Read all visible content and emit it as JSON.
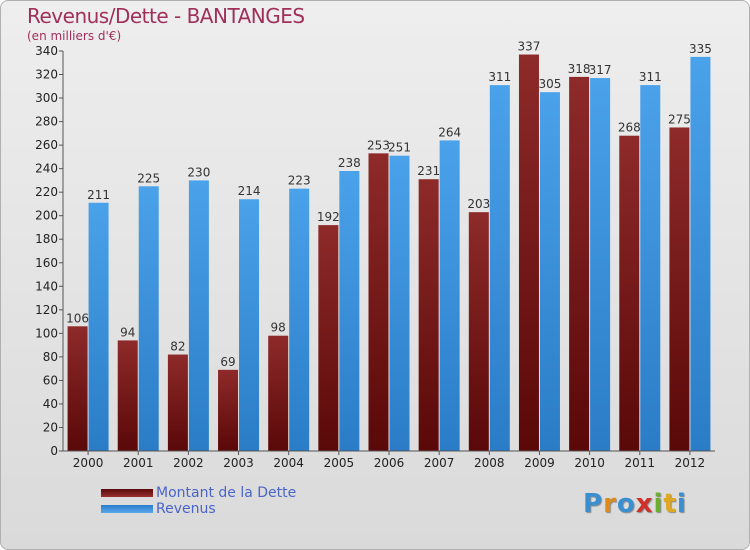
{
  "chart_data": {
    "type": "bar",
    "title": "Revenus/Dette - BANTANGES",
    "subtitle": "(en milliers d'€)",
    "categories": [
      "2000",
      "2001",
      "2002",
      "2003",
      "2004",
      "2005",
      "2006",
      "2007",
      "2008",
      "2009",
      "2010",
      "2011",
      "2012"
    ],
    "series": [
      {
        "name": "Montant de la Dette",
        "values": [
          106,
          94,
          82,
          69,
          98,
          192,
          253,
          231,
          203,
          337,
          318,
          268,
          275
        ],
        "color": "#7a1e1e"
      },
      {
        "name": "Revenus",
        "values": [
          211,
          225,
          230,
          214,
          223,
          238,
          251,
          264,
          311,
          305,
          317,
          311,
          335
        ],
        "color": "#3b8ed8"
      }
    ],
    "ylim": [
      0,
      340
    ],
    "yticks": [
      0,
      20,
      40,
      60,
      80,
      100,
      120,
      140,
      160,
      180,
      200,
      220,
      240,
      260,
      280,
      300,
      320,
      340
    ],
    "grid": false,
    "legend": "bottom-left",
    "xlabel": "",
    "ylabel": ""
  },
  "logo": {
    "letters": [
      "P",
      "r",
      "o",
      "x",
      "i",
      "t",
      "i"
    ],
    "colors": [
      "#3a8fd0",
      "#e08a1e",
      "#3a8fd0",
      "#d0302a",
      "#6ab02e",
      "#e0a81e",
      "#3a8fd0"
    ]
  }
}
